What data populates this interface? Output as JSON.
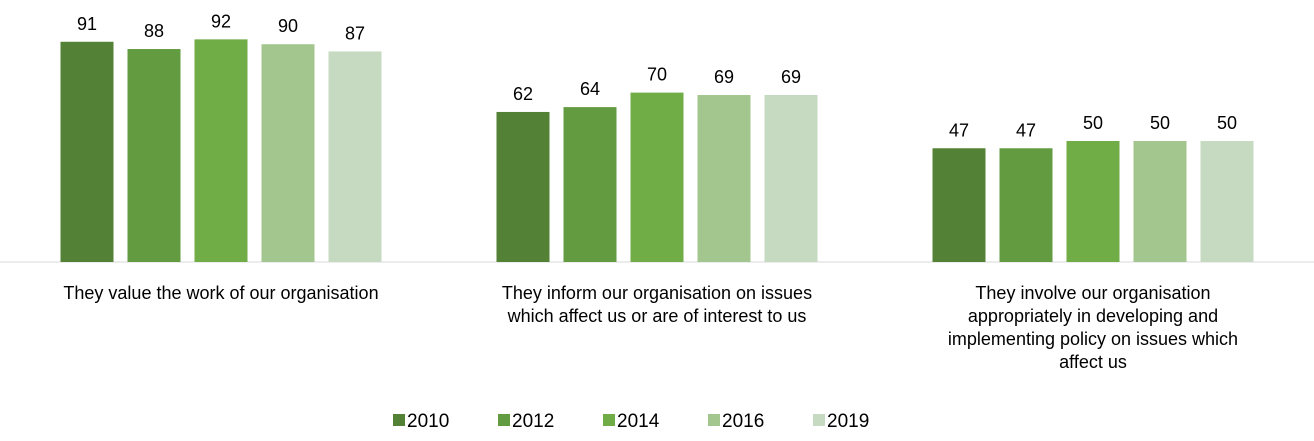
{
  "chart_data": {
    "type": "bar",
    "categories": [
      [
        "They value the work of our organisation"
      ],
      [
        "They inform our organisation on issues",
        "which affect us or are of interest to us"
      ],
      [
        "They involve our organisation",
        "appropriately in developing and",
        "implementing policy on issues which",
        "affect us"
      ]
    ],
    "series": [
      {
        "name": "2010",
        "values": [
          91,
          62,
          47
        ],
        "color": "#538135"
      },
      {
        "name": "2012",
        "values": [
          88,
          64,
          47
        ],
        "color": "#629B40"
      },
      {
        "name": "2014",
        "values": [
          92,
          70,
          50
        ],
        "color": "#70AD47"
      },
      {
        "name": "2016",
        "values": [
          90,
          69,
          50
        ],
        "color": "#A3C68F"
      },
      {
        "name": "2019",
        "values": [
          87,
          69,
          50
        ],
        "color": "#C5DAC0"
      }
    ],
    "ylim": [
      0,
      100
    ],
    "grid": false,
    "data_labels": true,
    "legend_position": "bottom"
  }
}
